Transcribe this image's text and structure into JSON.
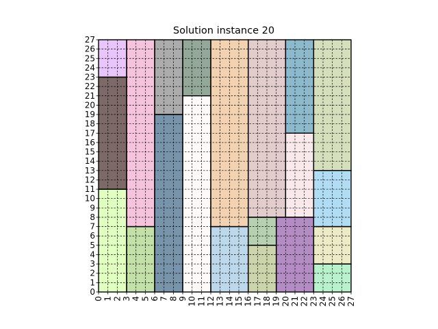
{
  "chart_data": {
    "type": "rect-packing",
    "title": "Solution instance 20",
    "xlim": [
      0,
      27
    ],
    "ylim": [
      0,
      27
    ],
    "grid": true,
    "x_ticks": [
      0,
      1,
      2,
      3,
      4,
      5,
      6,
      7,
      8,
      9,
      10,
      11,
      12,
      13,
      14,
      15,
      16,
      17,
      18,
      19,
      20,
      21,
      22,
      23,
      24,
      25,
      26,
      27
    ],
    "y_ticks": [
      0,
      1,
      2,
      3,
      4,
      5,
      6,
      7,
      8,
      9,
      10,
      11,
      12,
      13,
      14,
      15,
      16,
      17,
      18,
      19,
      20,
      21,
      22,
      23,
      24,
      25,
      26,
      27
    ],
    "rects": [
      {
        "x": 0,
        "y": 0,
        "w": 3,
        "h": 11,
        "color": "#e0ffc0"
      },
      {
        "x": 0,
        "y": 11,
        "w": 3,
        "h": 12,
        "color": "#7d6a68"
      },
      {
        "x": 0,
        "y": 23,
        "w": 3,
        "h": 4,
        "color": "#e8c5fb"
      },
      {
        "x": 3,
        "y": 0,
        "w": 3,
        "h": 7,
        "color": "#c2e0a8"
      },
      {
        "x": 3,
        "y": 7,
        "w": 3,
        "h": 20,
        "color": "#f5c4dc"
      },
      {
        "x": 6,
        "y": 0,
        "w": 3,
        "h": 19,
        "color": "#7894aa"
      },
      {
        "x": 6,
        "y": 19,
        "w": 3,
        "h": 8,
        "color": "#acacac"
      },
      {
        "x": 9,
        "y": 0,
        "w": 3,
        "h": 21,
        "color": "#fefafa"
      },
      {
        "x": 9,
        "y": 21,
        "w": 3,
        "h": 6,
        "color": "#93a898"
      },
      {
        "x": 12,
        "y": 0,
        "w": 4,
        "h": 7,
        "color": "#bcd8ea"
      },
      {
        "x": 12,
        "y": 7,
        "w": 4,
        "h": 20,
        "color": "#f3d2b2"
      },
      {
        "x": 16,
        "y": 0,
        "w": 3,
        "h": 5,
        "color": "#cbd4aa"
      },
      {
        "x": 16,
        "y": 5,
        "w": 3,
        "h": 3,
        "color": "#b6d1b0"
      },
      {
        "x": 16,
        "y": 8,
        "w": 4,
        "h": 19,
        "color": "#e2cccc"
      },
      {
        "x": 19,
        "y": 0,
        "w": 4,
        "h": 8,
        "color": "#b48cc4"
      },
      {
        "x": 20,
        "y": 8,
        "w": 3,
        "h": 9,
        "color": "#f9e9ea"
      },
      {
        "x": 20,
        "y": 17,
        "w": 3,
        "h": 10,
        "color": "#8cb9cc"
      },
      {
        "x": 23,
        "y": 0,
        "w": 4,
        "h": 3,
        "color": "#b8f1cc"
      },
      {
        "x": 23,
        "y": 3,
        "w": 4,
        "h": 4,
        "color": "#ecebc6"
      },
      {
        "x": 23,
        "y": 7,
        "w": 4,
        "h": 6,
        "color": "#b0dcf4"
      },
      {
        "x": 23,
        "y": 13,
        "w": 4,
        "h": 14,
        "color": "#d5dfbc"
      }
    ]
  }
}
